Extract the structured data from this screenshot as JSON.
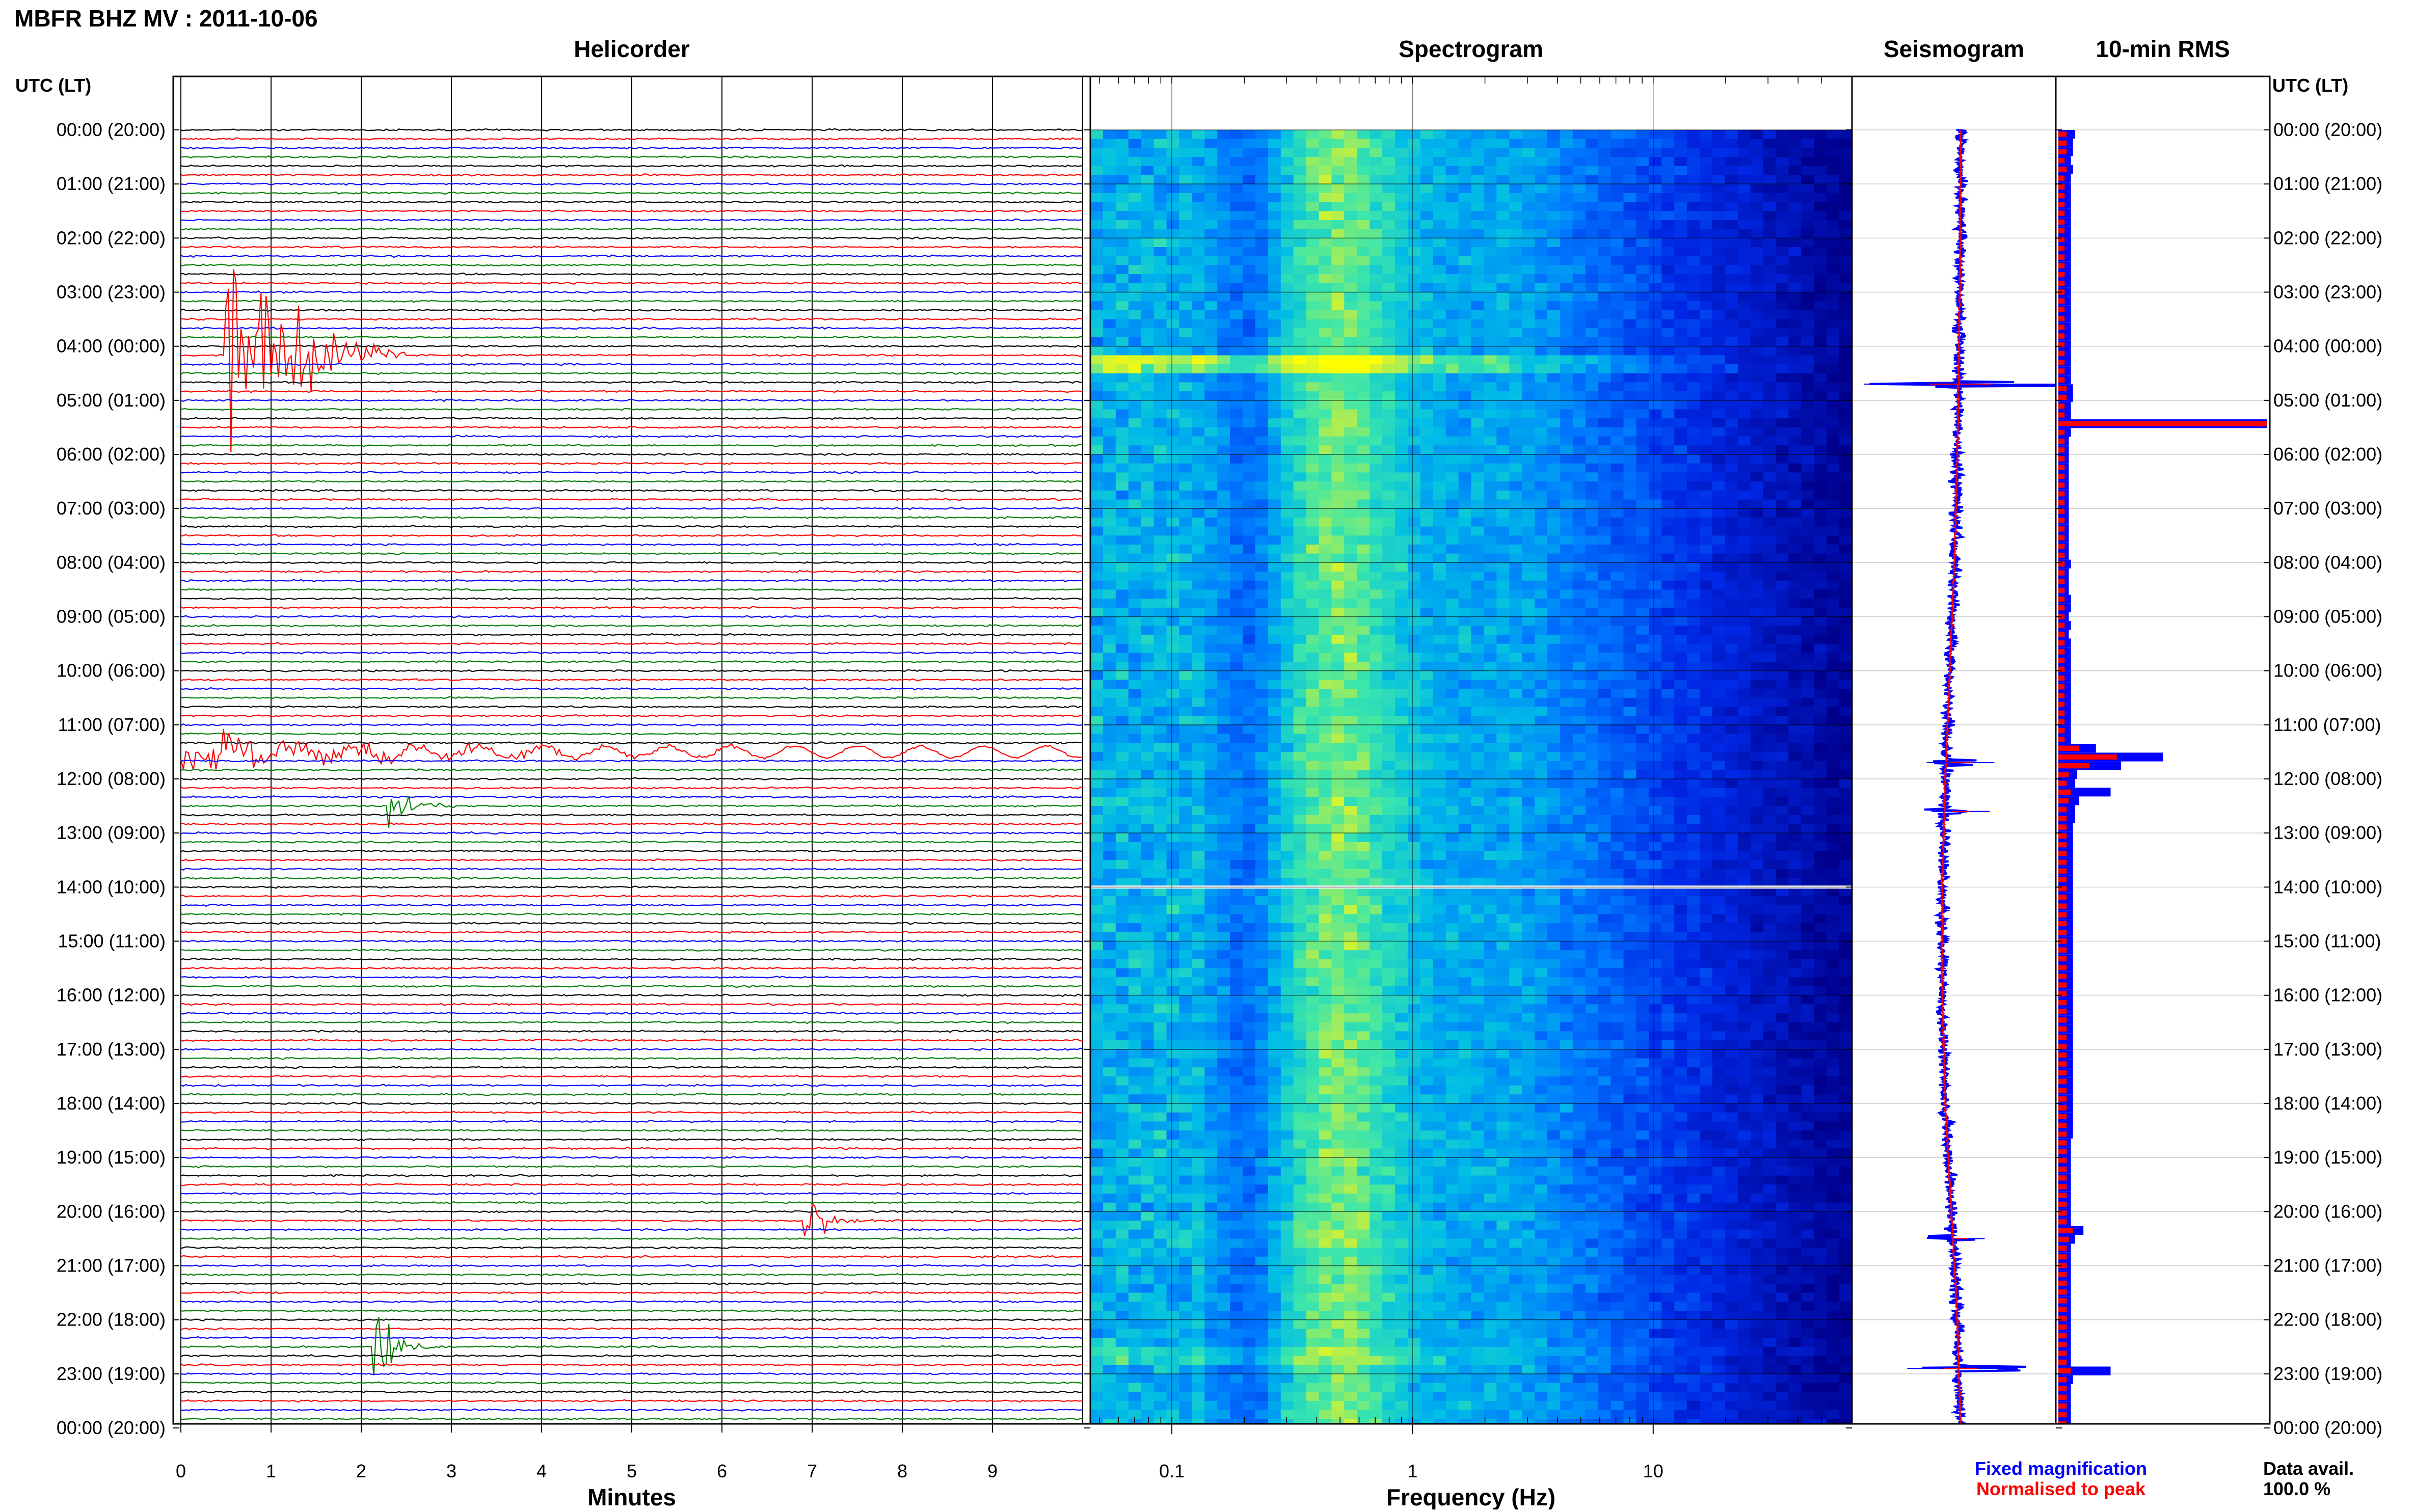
{
  "header": {
    "title": "MBFR BHZ MV : 2011-10-06",
    "utc_label_left": "UTC (LT)",
    "utc_label_right": "UTC (LT)"
  },
  "panels": {
    "helicorder": "Helicorder",
    "spectrogram": "Spectrogram",
    "seismogram": "Seismogram",
    "rms": "10-min RMS"
  },
  "time_labels": [
    "00:00 (20:00)",
    "01:00 (21:00)",
    "02:00 (22:00)",
    "03:00 (23:00)",
    "04:00 (00:00)",
    "05:00 (01:00)",
    "06:00 (02:00)",
    "07:00 (03:00)",
    "08:00 (04:00)",
    "09:00 (05:00)",
    "10:00 (06:00)",
    "11:00 (07:00)",
    "12:00 (08:00)",
    "13:00 (09:00)",
    "14:00 (10:00)",
    "15:00 (11:00)",
    "16:00 (12:00)",
    "17:00 (13:00)",
    "18:00 (14:00)",
    "19:00 (15:00)",
    "20:00 (16:00)",
    "21:00 (17:00)",
    "22:00 (18:00)",
    "23:00 (19:00)",
    "00:00 (20:00)"
  ],
  "helicorder_axis": {
    "xlabel": "Minutes",
    "ticks": [
      "0",
      "1",
      "2",
      "3",
      "4",
      "5",
      "6",
      "7",
      "8",
      "9"
    ],
    "xlim": [
      0,
      10
    ]
  },
  "spectrogram_axis": {
    "xlabel": "Frequency (Hz)",
    "scale": "log",
    "ticks": [
      "0.1",
      "1",
      "10"
    ],
    "xlim": [
      0.03,
      50
    ]
  },
  "legend": {
    "fixed": "Fixed magnification",
    "normalised": "Normalised to peak",
    "fixed_color": "#0000ff",
    "normalised_color": "#ff0000"
  },
  "data_avail": {
    "label": "Data avail.",
    "value": "100.0 %"
  },
  "colors": {
    "trace_cycle": [
      "#000000",
      "#ff0000",
      "#0000ff",
      "#008000"
    ],
    "spec_low": "#00008b",
    "spec_high": "#ffff00"
  },
  "chart_data": {
    "type": "helicorder",
    "hours": 24,
    "lines_per_hour": 6,
    "events_helicorder": [
      {
        "hour": 4.3,
        "minute": 0.5,
        "amplitude": 1.0,
        "duration_min": 2.0
      },
      {
        "hour": 22.6,
        "minute": 2.1,
        "amplitude": 0.35,
        "duration_min": 0.8
      },
      {
        "hour": 20.3,
        "minute": 6.9,
        "amplitude": 0.15,
        "duration_min": 0.8
      },
      {
        "hour": 12.5,
        "minute": 2.3,
        "amplitude": 0.12,
        "duration_min": 1.0
      },
      {
        "hour": 11.6,
        "minute": 0.0,
        "amplitude": 0.08,
        "duration_min": 10.0
      }
    ],
    "rms_fixed": [
      0.08,
      0.07,
      0.07,
      0.06,
      0.07,
      0.06,
      0.06,
      0.06,
      0.06,
      0.06,
      0.06,
      0.06,
      0.06,
      0.06,
      0.06,
      0.06,
      0.06,
      0.06,
      0.06,
      0.06,
      0.06,
      0.06,
      0.06,
      0.06,
      0.06,
      0.06,
      0.06,
      0.06,
      0.06,
      0.07,
      0.07,
      0.06,
      0.06,
      1.0,
      0.06,
      0.05,
      0.05,
      0.05,
      0.05,
      0.05,
      0.05,
      0.05,
      0.05,
      0.05,
      0.05,
      0.05,
      0.05,
      0.05,
      0.05,
      0.06,
      0.05,
      0.05,
      0.05,
      0.06,
      0.06,
      0.05,
      0.06,
      0.05,
      0.06,
      0.06,
      0.06,
      0.06,
      0.06,
      0.06,
      0.06,
      0.06,
      0.06,
      0.06,
      0.06,
      0.06,
      0.18,
      0.5,
      0.3,
      0.09,
      0.08,
      0.25,
      0.1,
      0.08,
      0.08,
      0.07,
      0.07,
      0.07,
      0.07,
      0.07,
      0.07,
      0.07,
      0.07,
      0.07,
      0.07,
      0.07,
      0.07,
      0.07,
      0.07,
      0.07,
      0.07,
      0.07,
      0.07,
      0.07,
      0.07,
      0.07,
      0.07,
      0.07,
      0.07,
      0.07,
      0.07,
      0.07,
      0.07,
      0.07,
      0.07,
      0.07,
      0.07,
      0.07,
      0.07,
      0.07,
      0.07,
      0.06,
      0.06,
      0.06,
      0.06,
      0.06,
      0.06,
      0.06,
      0.06,
      0.06,
      0.06,
      0.12,
      0.08,
      0.06,
      0.06,
      0.06,
      0.06,
      0.06,
      0.06,
      0.06,
      0.06,
      0.06,
      0.06,
      0.06,
      0.06,
      0.06,
      0.06,
      0.25,
      0.07,
      0.06,
      0.06,
      0.06,
      0.06,
      0.06
    ],
    "rms_norm": [
      0.04,
      0.04,
      0.04,
      0.03,
      0.04,
      0.03,
      0.03,
      0.03,
      0.03,
      0.03,
      0.03,
      0.03,
      0.03,
      0.03,
      0.03,
      0.03,
      0.03,
      0.03,
      0.03,
      0.03,
      0.03,
      0.03,
      0.03,
      0.03,
      0.03,
      0.03,
      0.03,
      0.03,
      0.03,
      0.04,
      0.04,
      0.03,
      0.03,
      1.0,
      0.03,
      0.03,
      0.03,
      0.03,
      0.03,
      0.03,
      0.03,
      0.03,
      0.03,
      0.03,
      0.03,
      0.03,
      0.03,
      0.03,
      0.03,
      0.03,
      0.03,
      0.03,
      0.03,
      0.03,
      0.03,
      0.03,
      0.03,
      0.03,
      0.03,
      0.03,
      0.03,
      0.03,
      0.03,
      0.03,
      0.03,
      0.03,
      0.03,
      0.03,
      0.03,
      0.03,
      0.1,
      0.28,
      0.15,
      0.05,
      0.04,
      0.06,
      0.05,
      0.04,
      0.04,
      0.04,
      0.04,
      0.04,
      0.04,
      0.04,
      0.04,
      0.04,
      0.04,
      0.04,
      0.04,
      0.04,
      0.04,
      0.04,
      0.04,
      0.04,
      0.04,
      0.04,
      0.04,
      0.04,
      0.04,
      0.04,
      0.04,
      0.04,
      0.04,
      0.04,
      0.04,
      0.04,
      0.04,
      0.04,
      0.04,
      0.04,
      0.04,
      0.04,
      0.04,
      0.04,
      0.04,
      0.04,
      0.04,
      0.04,
      0.04,
      0.04,
      0.04,
      0.04,
      0.04,
      0.04,
      0.04,
      0.07,
      0.05,
      0.04,
      0.04,
      0.04,
      0.04,
      0.04,
      0.04,
      0.04,
      0.04,
      0.04,
      0.04,
      0.04,
      0.04,
      0.04,
      0.04,
      0.06,
      0.04,
      0.04,
      0.04,
      0.04,
      0.04,
      0.04
    ],
    "seismogram_drift": [
      0,
      0,
      0.1,
      0.2,
      0.4,
      0.7,
      1.0,
      1.2,
      1.2,
      1.0,
      0.6,
      0.2,
      0
    ],
    "seismogram_spikes": [
      {
        "hour": 4.7,
        "amplitude": 1.0
      },
      {
        "hour": 11.7,
        "amplitude": 0.35
      },
      {
        "hour": 12.6,
        "amplitude": 0.3
      },
      {
        "hour": 20.5,
        "amplitude": 0.25
      },
      {
        "hour": 22.9,
        "amplitude": 0.55
      }
    ]
  }
}
